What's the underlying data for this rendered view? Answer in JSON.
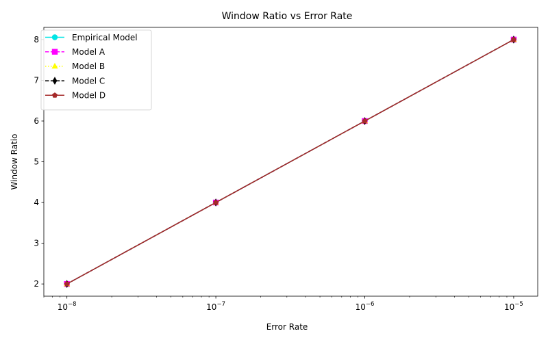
{
  "chart_data": {
    "type": "line",
    "title": "Window Ratio vs Error Rate",
    "xlabel": "Error Rate",
    "ylabel": "Window Ratio",
    "x_scale": "log",
    "x": [
      1e-08,
      1e-07,
      1e-06,
      1e-05
    ],
    "xlim": [
      7e-09,
      1.45e-05
    ],
    "ylim": [
      1.7,
      8.3
    ],
    "x_ticks": [
      {
        "value": 1e-08,
        "base": "10",
        "exp": "−8"
      },
      {
        "value": 1e-07,
        "base": "10",
        "exp": "−7"
      },
      {
        "value": 1e-06,
        "base": "10",
        "exp": "−6"
      },
      {
        "value": 1e-05,
        "base": "10",
        "exp": "−5"
      }
    ],
    "y_ticks": [
      2,
      3,
      4,
      5,
      6,
      7,
      8
    ],
    "grid": false,
    "legend_position": "top-left",
    "series": [
      {
        "name": "Empirical Model",
        "values": [
          2,
          4,
          6,
          8
        ],
        "color": "#00e5e5",
        "linestyle": "solid",
        "marker": "circle"
      },
      {
        "name": "Model A",
        "values": [
          2,
          4,
          6,
          8
        ],
        "color": "#ff00ff",
        "linestyle": "dashed",
        "marker": "square"
      },
      {
        "name": "Model B",
        "values": [
          2,
          4,
          6,
          8
        ],
        "color": "#ffff00",
        "linestyle": "dotted",
        "marker": "triangle"
      },
      {
        "name": "Model C",
        "values": [
          2,
          4,
          6,
          8
        ],
        "color": "#000000",
        "linestyle": "dashed",
        "marker": "diamond"
      },
      {
        "name": "Model D",
        "values": [
          2,
          4,
          6,
          8
        ],
        "color": "#a52a2a",
        "linestyle": "solid",
        "marker": "pentagon"
      }
    ]
  }
}
